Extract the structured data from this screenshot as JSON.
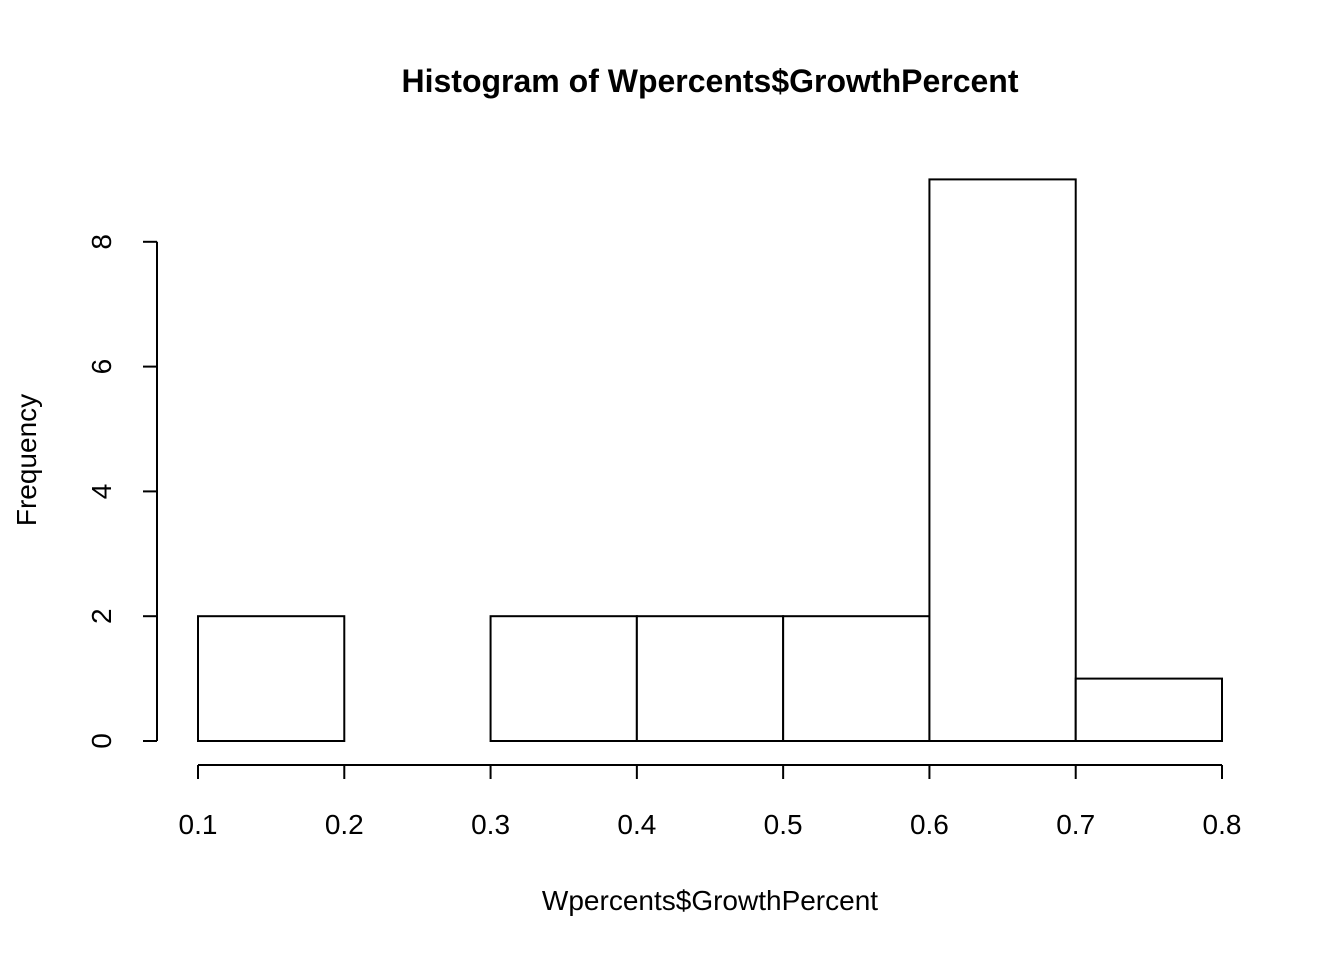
{
  "chart_data": {
    "type": "bar",
    "title": "Histogram of Wpercents$GrowthPercent",
    "xlabel": "Wpercents$GrowthPercent",
    "ylabel": "Frequency",
    "bins": [
      {
        "from": 0.1,
        "to": 0.2,
        "count": 2
      },
      {
        "from": 0.2,
        "to": 0.3,
        "count": 0
      },
      {
        "from": 0.3,
        "to": 0.4,
        "count": 2
      },
      {
        "from": 0.4,
        "to": 0.5,
        "count": 2
      },
      {
        "from": 0.5,
        "to": 0.6,
        "count": 2
      },
      {
        "from": 0.6,
        "to": 0.7,
        "count": 9
      },
      {
        "from": 0.7,
        "to": 0.8,
        "count": 1
      }
    ],
    "x_ticks": [
      "0.1",
      "0.2",
      "0.3",
      "0.4",
      "0.5",
      "0.6",
      "0.7",
      "0.8"
    ],
    "y_ticks": [
      "0",
      "2",
      "4",
      "6",
      "8"
    ],
    "xlim": [
      0.1,
      0.8
    ],
    "ylim": [
      0,
      9
    ],
    "grid": false,
    "legend": "none",
    "bar_fill": "#ffffff",
    "bar_stroke": "#000000"
  }
}
